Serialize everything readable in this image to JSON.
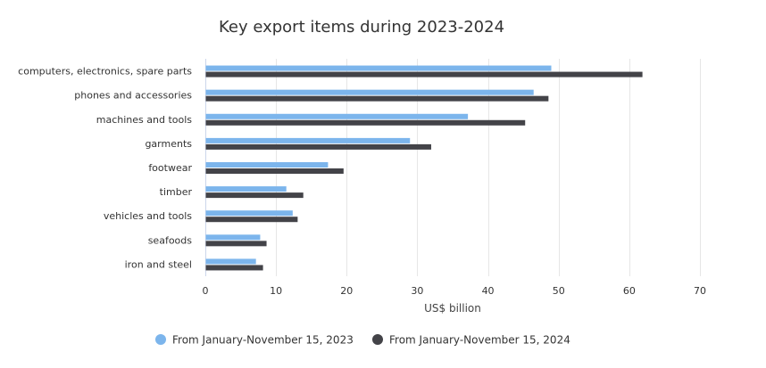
{
  "chart_data": {
    "type": "bar",
    "orientation": "horizontal",
    "title": "Key export items during 2023-2024",
    "xlabel": "US$ billion",
    "ylabel": "",
    "xlim": [
      0,
      70
    ],
    "x_ticks": [
      0,
      10,
      20,
      30,
      40,
      50,
      60,
      70
    ],
    "grid": true,
    "legend_position": "bottom-center",
    "categories": [
      "computers, electronics, spare parts",
      "phones and accessories",
      "machines and tools",
      "garments",
      "footwear",
      "timber",
      "vehicles and tools",
      "seafoods",
      "iron and steel"
    ],
    "series": [
      {
        "name": "From January-November 15, 2023",
        "color": "#7cb5ec",
        "values": [
          48.9,
          46.4,
          37.1,
          28.9,
          17.3,
          11.4,
          12.3,
          7.7,
          7.1
        ]
      },
      {
        "name": "From January-November 15, 2024",
        "color": "#434348",
        "values": [
          61.8,
          48.5,
          45.2,
          31.9,
          19.5,
          13.8,
          13.0,
          8.6,
          8.1
        ]
      }
    ]
  }
}
